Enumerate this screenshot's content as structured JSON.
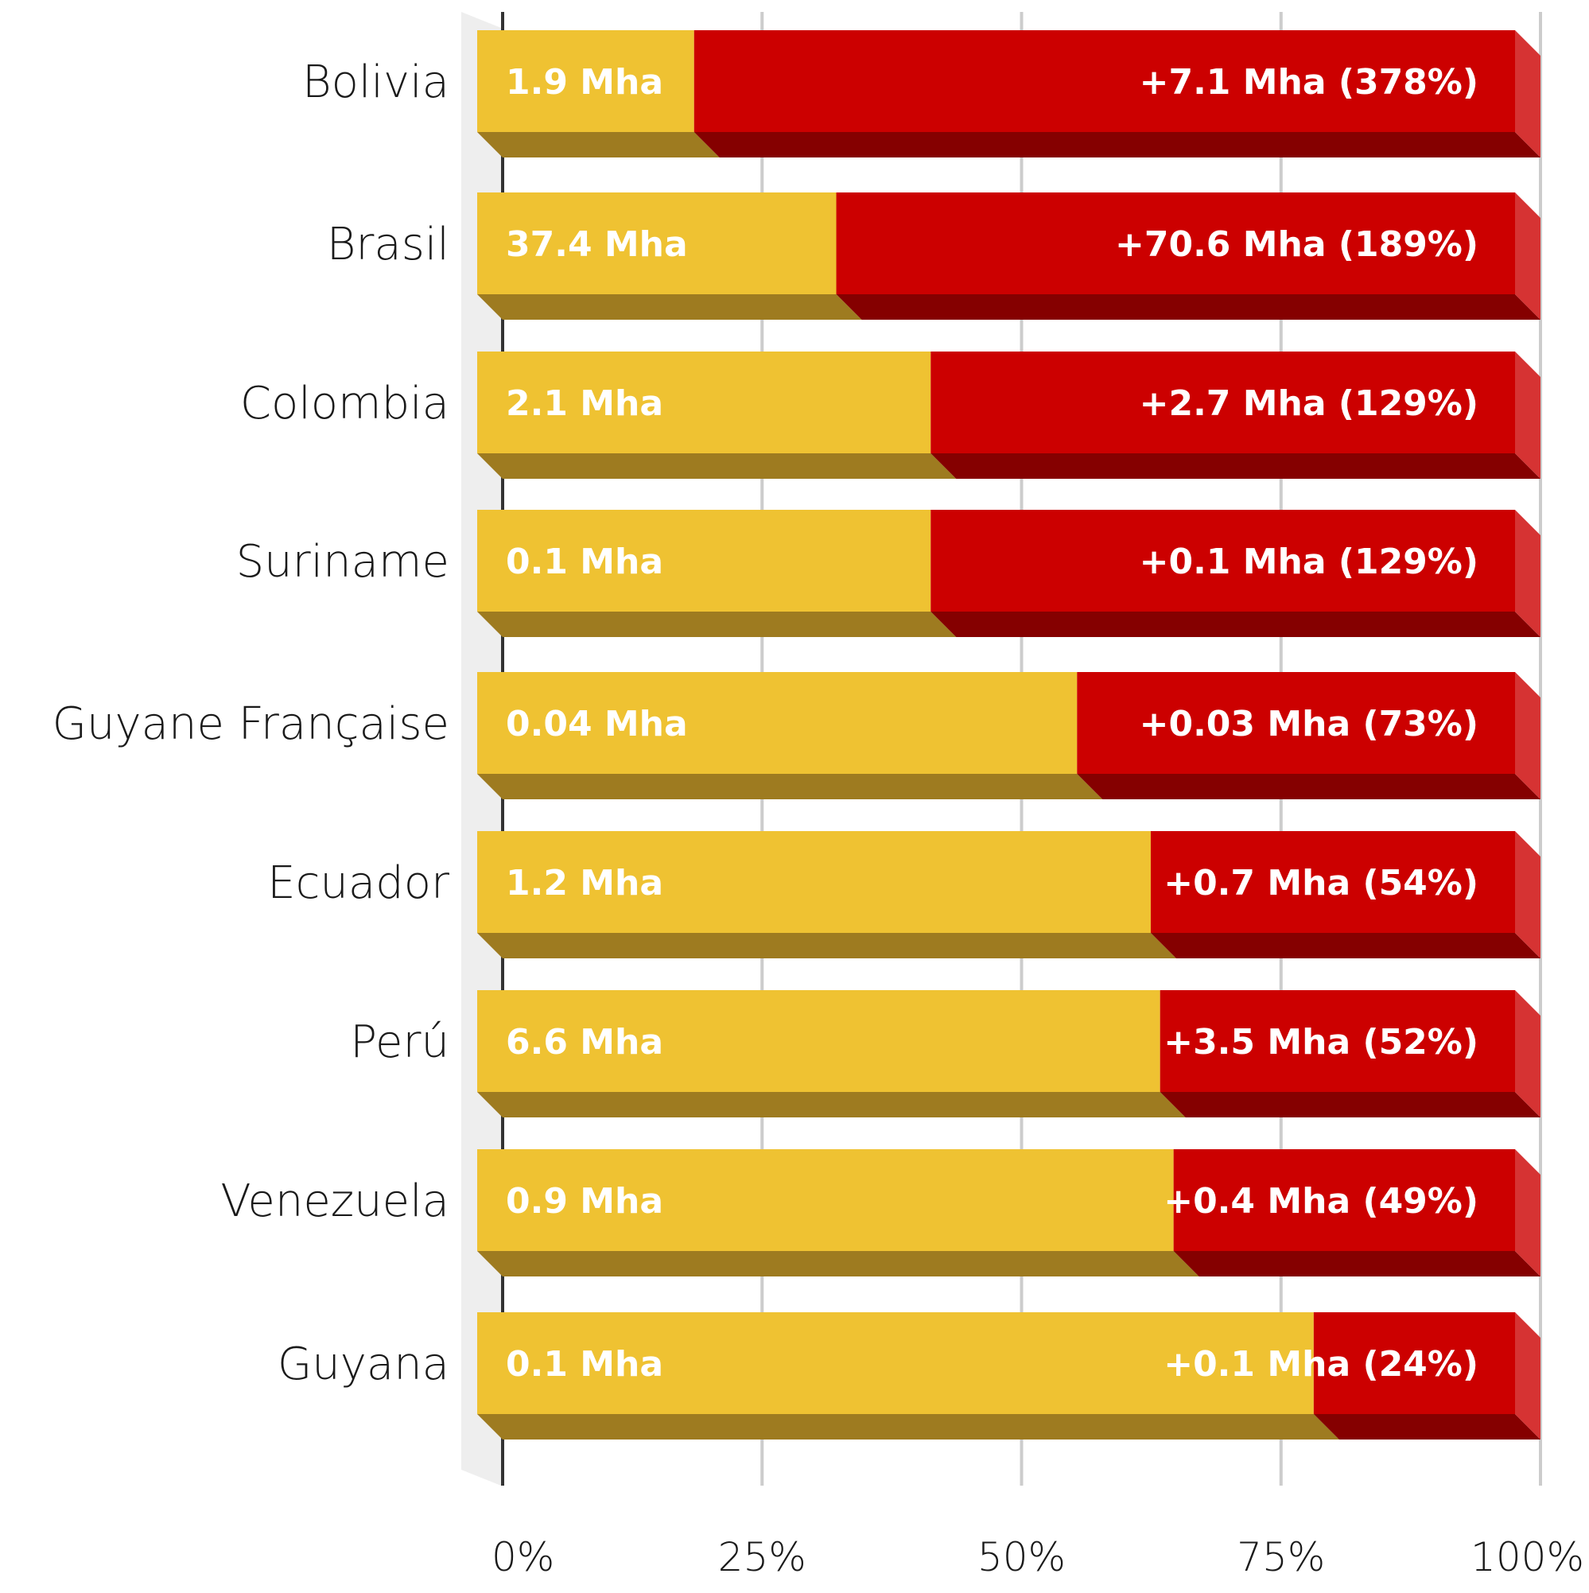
{
  "chart_data": {
    "type": "bar",
    "orientation": "horizontal",
    "stacked": "percent",
    "categories": [
      "Bolivia",
      "Brasil",
      "Colombia",
      "Suriname",
      "Guyane Française",
      "Ecuador",
      "Perú",
      "Venezuela",
      "Guyana"
    ],
    "series": [
      {
        "values": [
          1.9,
          37.4,
          2.1,
          0.1,
          0.04,
          1.2,
          6.6,
          0.9,
          0.1
        ],
        "percent": [
          20.9,
          34.6,
          43.7,
          43.7,
          57.8,
          64.9,
          65.8,
          67.1,
          80.6
        ],
        "labels": [
          "1.9 Mha",
          "37.4 Mha",
          "2.1 Mha",
          "0.1 Mha",
          "0.04 Mha",
          "1.2 Mha",
          "6.6 Mha",
          "0.9 Mha",
          "0.1 Mha"
        ]
      },
      {
        "values": [
          7.1,
          70.6,
          2.7,
          0.1,
          0.03,
          0.7,
          3.5,
          0.4,
          0.1
        ],
        "percent": [
          79.1,
          65.4,
          56.3,
          56.3,
          42.2,
          35.1,
          34.2,
          32.9,
          19.4
        ],
        "labels": [
          "+7.1 Mha (378%)",
          "+70.6 Mha (189%)",
          "+2.7 Mha (129%)",
          "+0.1 Mha (129%)",
          "+0.03 Mha (73%)",
          "+0.7 Mha (54%)",
          "+3.5 Mha (52%)",
          "+0.4 Mha (49%)",
          "+0.1 Mha (24%)"
        ]
      }
    ],
    "x_ticks": [
      "0%",
      "25%",
      "50%",
      "75%",
      "100%"
    ],
    "xlim": [
      0,
      100
    ],
    "grid": true,
    "colors": {
      "base": "#EFC232",
      "base_shadow": "#9E7B20",
      "increase": "#CC0000",
      "increase_shadow": "#850000",
      "increase_side": "#D63333",
      "grid": "#CCCCCC",
      "axis": "#333333",
      "wall": "#EEEEEE"
    }
  }
}
